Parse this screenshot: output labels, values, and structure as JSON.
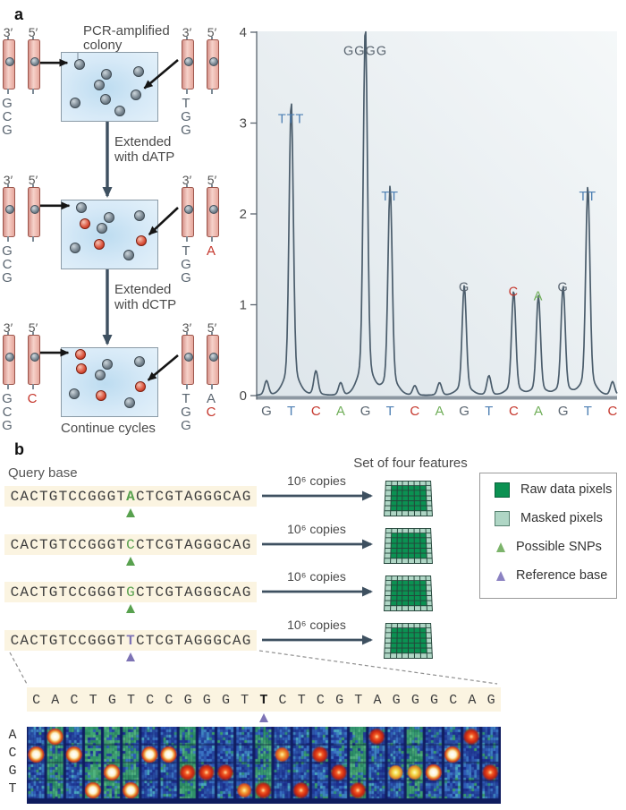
{
  "colors": {
    "bases": {
      "G": "#5a6570",
      "T": "#4d7fb3",
      "C": "#c5372d",
      "A": "#6fae58"
    },
    "variant_green": "#58a14e",
    "reference_purple": "#7d73b5",
    "raw_pixel": "#0b9152",
    "masked_pixel": "#afd6c5",
    "arrow_slate": "#3e5060",
    "chart_line": "#4b5d6c",
    "strip_bg": "#fbf4e1"
  },
  "panel_a": {
    "label": "a",
    "caption_lines": [
      "PCR-amplified",
      "colony"
    ],
    "flow_labels": [
      [
        "Extended",
        "with dATP"
      ],
      [
        "Extended",
        "with dCTP"
      ]
    ],
    "continue_label": "Continue cycles",
    "prime3": "3′",
    "prime5": "5′",
    "blocks": [
      {
        "left": {
          "bases3": [
            {
              "ch": "G"
            },
            {
              "ch": "C"
            },
            {
              "ch": "G"
            }
          ],
          "bases5": []
        },
        "right": {
          "bases3": [
            {
              "ch": "T"
            },
            {
              "ch": "G"
            },
            {
              "ch": "G"
            }
          ],
          "bases5": []
        },
        "gray_dots": [
          [
            0.18,
            0.16
          ],
          [
            0.46,
            0.3
          ],
          [
            0.79,
            0.26
          ],
          [
            0.38,
            0.46
          ],
          [
            0.13,
            0.72
          ],
          [
            0.45,
            0.67
          ],
          [
            0.77,
            0.6
          ],
          [
            0.6,
            0.84
          ]
        ],
        "red_dots": [],
        "left_point": [
          0.18,
          0.16
        ],
        "right_point": [
          0.77,
          0.6
        ]
      },
      {
        "left": {
          "bases3": [
            {
              "ch": "G"
            },
            {
              "ch": "C"
            },
            {
              "ch": "G"
            }
          ],
          "bases5": []
        },
        "right": {
          "bases3": [
            {
              "ch": "T"
            },
            {
              "ch": "G"
            },
            {
              "ch": "G"
            }
          ],
          "bases5": [
            {
              "ch": "A",
              "red": true
            }
          ]
        },
        "gray_dots": [
          [
            0.2,
            0.09
          ],
          [
            0.49,
            0.24
          ],
          [
            0.8,
            0.21
          ],
          [
            0.41,
            0.39
          ],
          [
            0.13,
            0.68
          ],
          [
            0.69,
            0.79
          ]
        ],
        "red_dots": [
          [
            0.23,
            0.33
          ],
          [
            0.38,
            0.63
          ],
          [
            0.82,
            0.58
          ]
        ],
        "left_point": [
          0.2,
          0.09
        ],
        "right_point": [
          0.82,
          0.58
        ]
      },
      {
        "left": {
          "bases3": [
            {
              "ch": "G"
            },
            {
              "ch": "C"
            },
            {
              "ch": "G"
            }
          ],
          "bases5": [
            {
              "ch": "C",
              "red": true
            }
          ]
        },
        "right": {
          "bases3": [
            {
              "ch": "T"
            },
            {
              "ch": "G"
            },
            {
              "ch": "G"
            }
          ],
          "bases5": [
            {
              "ch": "A"
            },
            {
              "ch": "C",
              "red": true
            }
          ]
        },
        "gray_dots": [
          [
            0.47,
            0.22
          ],
          [
            0.8,
            0.18
          ],
          [
            0.39,
            0.38
          ],
          [
            0.12,
            0.66
          ],
          [
            0.7,
            0.79
          ]
        ],
        "red_dots": [
          [
            0.19,
            0.08
          ],
          [
            0.2,
            0.29
          ],
          [
            0.4,
            0.68
          ],
          [
            0.81,
            0.55
          ]
        ],
        "left_point": [
          0.19,
          0.08
        ],
        "right_point": [
          0.81,
          0.55
        ]
      }
    ]
  },
  "chart_data": {
    "type": "line",
    "title": "",
    "xlabel": "",
    "ylabel": "",
    "ylim": [
      0,
      4
    ],
    "yticks": [
      0,
      1,
      2,
      3,
      4
    ],
    "grid": false,
    "legend_position": "none",
    "x_labels": [
      "G",
      "T",
      "C",
      "A",
      "G",
      "T",
      "C",
      "A",
      "G",
      "T",
      "C",
      "A",
      "G",
      "T",
      "C"
    ],
    "values": [
      0.15,
      2.95,
      0.25,
      0.13,
      3.7,
      2.1,
      0.1,
      0.13,
      1.1,
      0.2,
      1.05,
      1.0,
      1.1,
      2.1,
      0.14
    ],
    "peak_labels": [
      "",
      "TTT",
      "",
      "",
      "GGGG",
      "TT",
      "",
      "",
      "G",
      "",
      "C",
      "A",
      "G",
      "TT",
      ""
    ]
  },
  "panel_b": {
    "label": "b",
    "query_base_label": "Query base",
    "copies_label": "10⁶ copies",
    "features_title": "Set of four features",
    "rows": [
      {
        "seq": "CACTGTCCGGGTACTCGTAGGGCAG",
        "variant_index": 12,
        "variant_style": "green",
        "bold": true
      },
      {
        "seq": "CACTGTCCGGGTCCTCGTAGGGCAG",
        "variant_index": 12,
        "variant_style": "green",
        "bold": false
      },
      {
        "seq": "CACTGTCCGGGTGCTCGTAGGGCAG",
        "variant_index": 12,
        "variant_style": "green",
        "bold": false
      },
      {
        "seq": "CACTGTCCGGGTTCTCGTAGGGCAG",
        "variant_index": 12,
        "variant_style": "purple",
        "bold": true
      }
    ],
    "legend_items": [
      {
        "swatch": "square-dark",
        "label": "Raw data pixels"
      },
      {
        "swatch": "square-light",
        "label": "Masked pixels"
      },
      {
        "swatch": "triangle-green",
        "label": "Possible SNPs"
      },
      {
        "swatch": "triangle-purple",
        "label": "Reference base"
      }
    ],
    "expanded_seq": "CACTGTCCGGGTTCTCGTAGGGCAG",
    "expanded_bold_index": 12,
    "heatmap_row_labels": [
      "A",
      "C",
      "G",
      "T"
    ],
    "heatmap_spot_tones": [
      "white",
      "white",
      "white",
      "white",
      "white",
      "white",
      "white",
      "white",
      "red",
      "red",
      "red",
      "orange",
      "red",
      "orange",
      "red",
      "red",
      "red",
      "red",
      "red",
      "yellow",
      "yellow",
      "white",
      "white",
      "red",
      "red"
    ]
  }
}
